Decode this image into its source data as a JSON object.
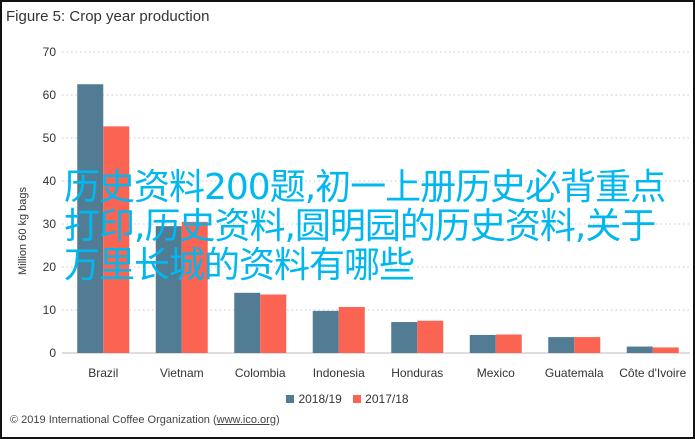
{
  "chart_data": {
    "type": "bar",
    "title": "Figure 5: Crop year production",
    "xlabel": "",
    "ylabel": "Million 60 kg bags",
    "ylim": [
      0,
      70
    ],
    "yticks": [
      0,
      10,
      20,
      30,
      40,
      50,
      60,
      70
    ],
    "grid": true,
    "legend_position": "bottom",
    "categories": [
      "Brazil",
      "Vietnam",
      "Colombia",
      "Indonesia",
      "Honduras",
      "Mexico",
      "Guatemala",
      "Côte d'Ivoire"
    ],
    "series": [
      {
        "name": "2018/19",
        "color": "#517c93",
        "values": [
          62.5,
          29.5,
          14.0,
          9.8,
          7.2,
          4.2,
          3.7,
          1.5
        ]
      },
      {
        "name": "2017/18",
        "color": "#fb6352",
        "values": [
          52.7,
          30.5,
          13.6,
          10.7,
          7.5,
          4.3,
          3.7,
          1.3
        ]
      }
    ]
  },
  "footer": {
    "prefix": "© 2019 International Coffee Organization (",
    "link": "www.ico.org",
    "suffix": ")"
  },
  "overlay": {
    "line1": "历史资料200题,初一上册历史必背重点",
    "line2": "打印,历史资料,圆明园的历史资料,关于",
    "line3": "万里长城的资料有哪些"
  }
}
